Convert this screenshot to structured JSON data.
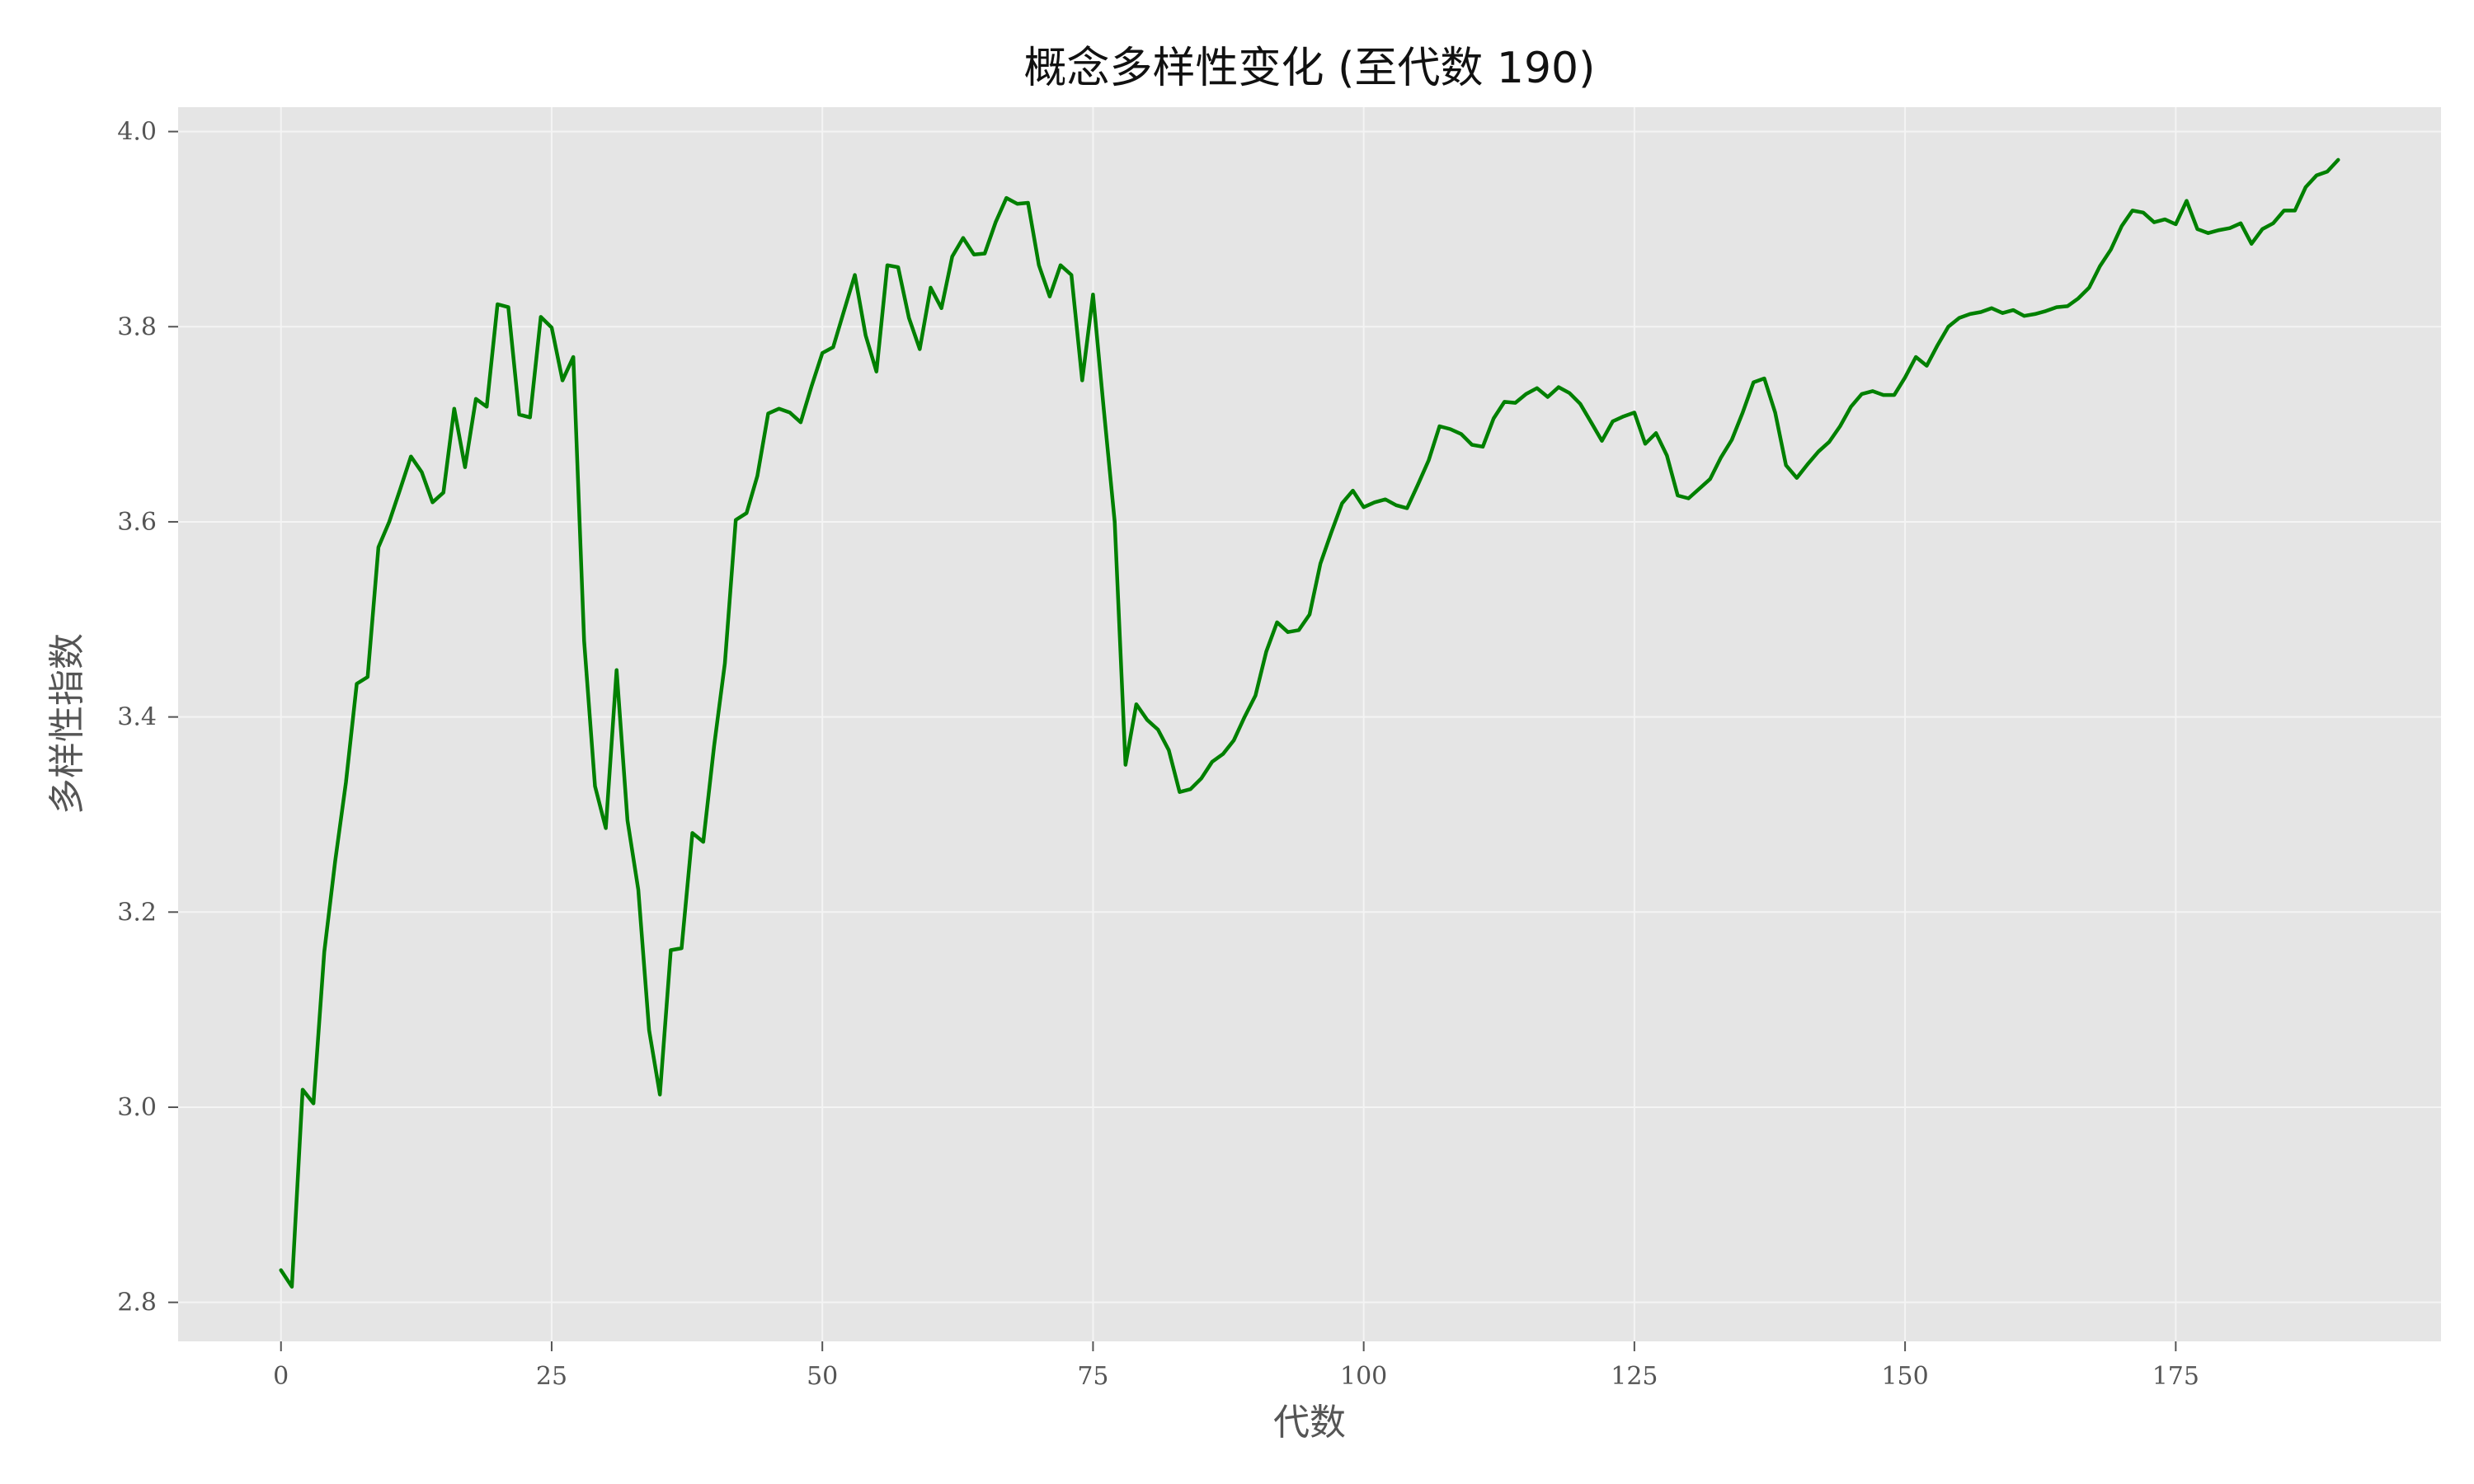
{
  "chart_data": {
    "type": "line",
    "title": "概念多样性变化 (至代数 190)",
    "xlabel": "代数",
    "ylabel": "多样性指数",
    "xlim": [
      -9.5,
      199.5
    ],
    "ylim": [
      2.76,
      4.025
    ],
    "x_ticks": [
      0,
      25,
      50,
      75,
      100,
      125,
      150,
      175
    ],
    "y_ticks": [
      2.8,
      3.0,
      3.2,
      3.4,
      3.6,
      3.8,
      4.0
    ],
    "x_tick_labels": [
      "0",
      "25",
      "50",
      "75",
      "100",
      "125",
      "150",
      "175"
    ],
    "y_tick_labels": [
      "2.8",
      "3.0",
      "3.2",
      "3.4",
      "3.6",
      "3.8",
      "4.0"
    ],
    "grid": true,
    "style": {
      "background": "#e5e5e5",
      "grid_color": "#f4f4f4",
      "line_color": "#008000"
    },
    "series": [
      {
        "x": [
          0,
          1,
          2,
          3,
          4,
          5,
          6,
          7,
          8,
          9,
          10,
          11,
          12,
          13,
          14,
          15,
          16,
          17,
          18,
          19,
          20,
          21,
          22,
          23,
          24,
          25,
          26,
          27,
          28,
          29,
          30,
          31,
          32,
          33,
          34,
          35,
          36,
          37,
          38,
          39,
          40,
          41,
          42,
          43,
          44,
          45,
          46,
          47,
          48,
          49,
          50,
          51,
          52,
          53,
          54,
          55,
          56,
          57,
          58,
          59,
          60,
          61,
          62,
          63,
          64,
          65,
          66,
          67,
          68,
          69,
          70,
          71,
          72,
          73,
          74,
          75,
          76,
          77,
          78,
          79,
          80,
          81,
          82,
          83,
          84,
          85,
          86,
          87,
          88,
          89,
          90,
          91,
          92,
          93,
          94,
          95,
          96,
          97,
          98,
          99,
          100,
          101,
          102,
          103,
          104,
          105,
          106,
          107,
          108,
          109,
          110,
          111,
          112,
          113,
          114,
          115,
          116,
          117,
          118,
          119,
          120,
          121,
          122,
          123,
          124,
          125,
          126,
          127,
          128,
          129,
          130,
          131,
          132,
          133,
          134,
          135,
          136,
          137,
          138,
          139,
          140,
          141,
          142,
          143,
          144,
          145,
          146,
          147,
          148,
          149,
          150,
          151,
          152,
          153,
          154,
          155,
          156,
          157,
          158,
          159,
          160,
          161,
          162,
          163,
          164,
          165,
          166,
          167,
          168,
          169,
          170,
          171,
          172,
          173,
          174,
          175,
          176,
          177,
          178,
          179,
          180,
          181,
          182,
          183,
          184,
          185,
          186,
          187,
          188,
          189,
          190
        ],
        "y": [
          2.833,
          2.816,
          3.018,
          3.004,
          3.159,
          3.252,
          3.333,
          3.434,
          3.441,
          3.574,
          3.6,
          3.633,
          3.667,
          3.651,
          3.62,
          3.63,
          3.716,
          3.656,
          3.726,
          3.718,
          3.823,
          3.82,
          3.71,
          3.707,
          3.81,
          3.799,
          3.745,
          3.769,
          3.478,
          3.329,
          3.286,
          3.448,
          3.294,
          3.223,
          3.079,
          3.013,
          3.161,
          3.163,
          3.281,
          3.272,
          3.37,
          3.455,
          3.602,
          3.609,
          3.647,
          3.711,
          3.716,
          3.712,
          3.702,
          3.739,
          3.773,
          3.779,
          3.816,
          3.853,
          3.791,
          3.754,
          3.863,
          3.861,
          3.809,
          3.777,
          3.84,
          3.819,
          3.872,
          3.891,
          3.874,
          3.875,
          3.907,
          3.932,
          3.926,
          3.927,
          3.863,
          3.831,
          3.863,
          3.853,
          3.745,
          3.833,
          3.715,
          3.6,
          3.351,
          3.413,
          3.397,
          3.387,
          3.366,
          3.323,
          3.326,
          3.337,
          3.354,
          3.362,
          3.376,
          3.4,
          3.422,
          3.467,
          3.497,
          3.487,
          3.489,
          3.505,
          3.557,
          3.589,
          3.619,
          3.632,
          3.615,
          3.62,
          3.623,
          3.617,
          3.614,
          3.638,
          3.663,
          3.698,
          3.695,
          3.69,
          3.679,
          3.677,
          3.706,
          3.723,
          3.722,
          3.731,
          3.737,
          3.728,
          3.738,
          3.732,
          3.721,
          3.702,
          3.683,
          3.703,
          3.708,
          3.712,
          3.68,
          3.691,
          3.668,
          3.627,
          3.624,
          3.634,
          3.644,
          3.666,
          3.684,
          3.712,
          3.743,
          3.747,
          3.712,
          3.658,
          3.645,
          3.659,
          3.672,
          3.682,
          3.698,
          3.718,
          3.731,
          3.734,
          3.73,
          3.73,
          3.748,
          3.769,
          3.76,
          3.781,
          3.8,
          3.809,
          3.813,
          3.815,
          3.819,
          3.814,
          3.817,
          3.811,
          3.813,
          3.816,
          3.82,
          3.821,
          3.829,
          3.84,
          3.862,
          3.879,
          3.903,
          3.919,
          3.917,
          3.907,
          3.91,
          3.905,
          3.929,
          3.9,
          3.896,
          3.899,
          3.901,
          3.906,
          3.885,
          3.9,
          3.906,
          3.919,
          3.919,
          3.943,
          3.955,
          3.959,
          3.971
        ]
      }
    ]
  }
}
